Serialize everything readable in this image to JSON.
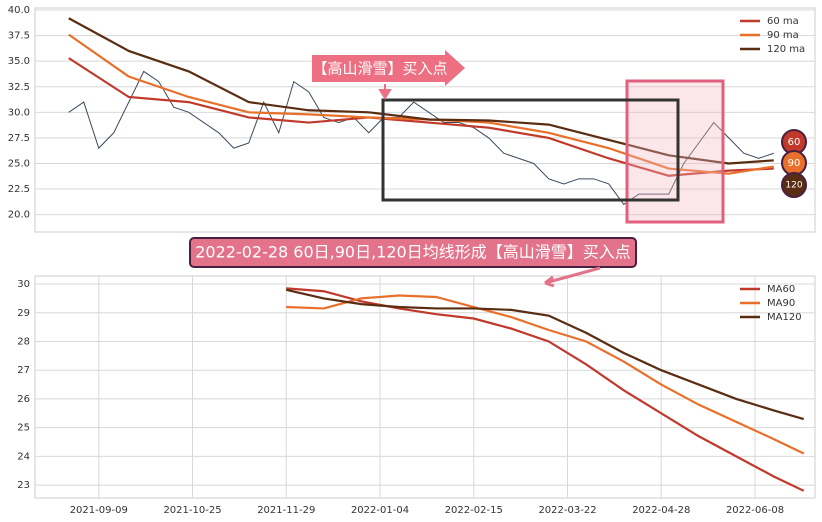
{
  "chart_data": [
    {
      "type": "line",
      "annotations": [
        "【高山滑雪】买入点",
        "60",
        "90",
        "120"
      ],
      "xlim": [
        -17,
        191
      ],
      "ylim": [
        18.3,
        40.2
      ],
      "yticks": [
        {
          "value": 20,
          "label": "20.0"
        },
        {
          "value": 22.5,
          "label": "22.5"
        },
        {
          "value": 25,
          "label": "25.0"
        },
        {
          "value": 27.5,
          "label": "27.5"
        },
        {
          "value": 30,
          "label": "30.0"
        },
        {
          "value": 32.5,
          "label": "32.5"
        },
        {
          "value": 35,
          "label": "35.0"
        },
        {
          "value": 37.5,
          "label": "37.5"
        },
        {
          "value": 40,
          "label": "40.0"
        }
      ],
      "grid": true,
      "legend": "upper right",
      "series": [
        {
          "color": "#3a4a5c",
          "x": [
            -8,
            -4,
            0,
            4,
            8,
            12,
            16,
            20,
            24,
            28,
            32,
            36,
            40,
            44,
            48,
            52,
            56,
            60,
            64,
            68,
            72,
            76,
            80,
            84,
            88,
            92,
            96,
            100,
            104,
            108,
            112,
            116,
            120,
            124,
            128,
            132,
            136,
            140,
            144,
            148,
            152,
            156,
            160,
            164,
            168,
            172,
            176,
            180
          ],
          "values": [
            30,
            31,
            26.5,
            28,
            31,
            34,
            33,
            30.5,
            30,
            29,
            28,
            26.5,
            27,
            31,
            28,
            33,
            32,
            29.5,
            29,
            29.5,
            28,
            29.5,
            29.5,
            31,
            30,
            29,
            29,
            28.5,
            27.5,
            26,
            25.5,
            25,
            23.5,
            23,
            23.5,
            23.5,
            23,
            21,
            22,
            22,
            22,
            25,
            27,
            29,
            27.5,
            26,
            25.5,
            26
          ]
        },
        {
          "name": "60 ma",
          "color": "#c0392b",
          "x": [
            -8,
            8,
            24,
            40,
            56,
            72,
            88,
            104,
            120,
            136,
            152,
            168,
            180
          ],
          "values": [
            35.3,
            31.5,
            31,
            29.5,
            29,
            29.5,
            29,
            28.5,
            27.5,
            25.5,
            23.8,
            24.3,
            24.5
          ]
        },
        {
          "name": "90 ma",
          "color": "#e8702a",
          "x": [
            -8,
            8,
            24,
            40,
            56,
            72,
            88,
            104,
            120,
            136,
            152,
            168,
            180
          ],
          "values": [
            37.6,
            33.5,
            31.5,
            30,
            29.8,
            29.5,
            29.3,
            29,
            28,
            26.5,
            24.5,
            24,
            24.7
          ]
        },
        {
          "name": "120 ma",
          "color": "#5a2d12",
          "x": [
            -8,
            8,
            24,
            40,
            56,
            72,
            88,
            104,
            120,
            136,
            152,
            168,
            180
          ],
          "values": [
            39.2,
            36,
            34,
            31,
            30.2,
            30,
            29.3,
            29.2,
            28.8,
            27.3,
            25.8,
            25,
            25.3
          ]
        }
      ]
    },
    {
      "type": "line",
      "annotations": [
        "2022-02-28 60日,90日,120日均线形成【高山滑雪】买入点"
      ],
      "xlim": [
        -17,
        191
      ],
      "ylim": [
        22.55,
        30.28
      ],
      "xticks": [
        {
          "value": 0,
          "label": "2021-09-09"
        },
        {
          "value": 25,
          "label": "2021-10-25"
        },
        {
          "value": 50,
          "label": "2021-11-29"
        },
        {
          "value": 75,
          "label": "2022-01-04"
        },
        {
          "value": 100,
          "label": "2022-02-15"
        },
        {
          "value": 125,
          "label": "2022-03-22"
        },
        {
          "value": 150,
          "label": "2022-04-28"
        },
        {
          "value": 175,
          "label": "2022-06-08"
        }
      ],
      "yticks": [
        23,
        24,
        25,
        26,
        27,
        28,
        29,
        30
      ],
      "grid": true,
      "legend": "upper right",
      "series": [
        {
          "name": "MA60",
          "color": "#c0392b",
          "x": [
            50,
            60,
            70,
            80,
            90,
            100,
            110,
            120,
            130,
            140,
            150,
            160,
            170,
            180,
            188
          ],
          "values": [
            29.85,
            29.75,
            29.4,
            29.15,
            28.95,
            28.8,
            28.45,
            28,
            27.2,
            26.3,
            25.5,
            24.7,
            24,
            23.3,
            22.8
          ]
        },
        {
          "name": "MA90",
          "color": "#e8702a",
          "x": [
            50,
            60,
            70,
            80,
            90,
            100,
            110,
            120,
            130,
            140,
            150,
            160,
            170,
            180,
            188
          ],
          "values": [
            29.2,
            29.15,
            29.5,
            29.6,
            29.55,
            29.2,
            28.85,
            28.4,
            28,
            27.3,
            26.5,
            25.8,
            25.2,
            24.6,
            24.1
          ]
        },
        {
          "name": "MA120",
          "color": "#5a2d12",
          "x": [
            50,
            60,
            70,
            80,
            90,
            100,
            110,
            120,
            130,
            140,
            150,
            160,
            170,
            180,
            188
          ],
          "values": [
            29.8,
            29.5,
            29.3,
            29.2,
            29.15,
            29.15,
            29.1,
            28.9,
            28.3,
            27.6,
            27,
            26.5,
            26,
            25.6,
            25.3
          ]
        }
      ]
    }
  ]
}
